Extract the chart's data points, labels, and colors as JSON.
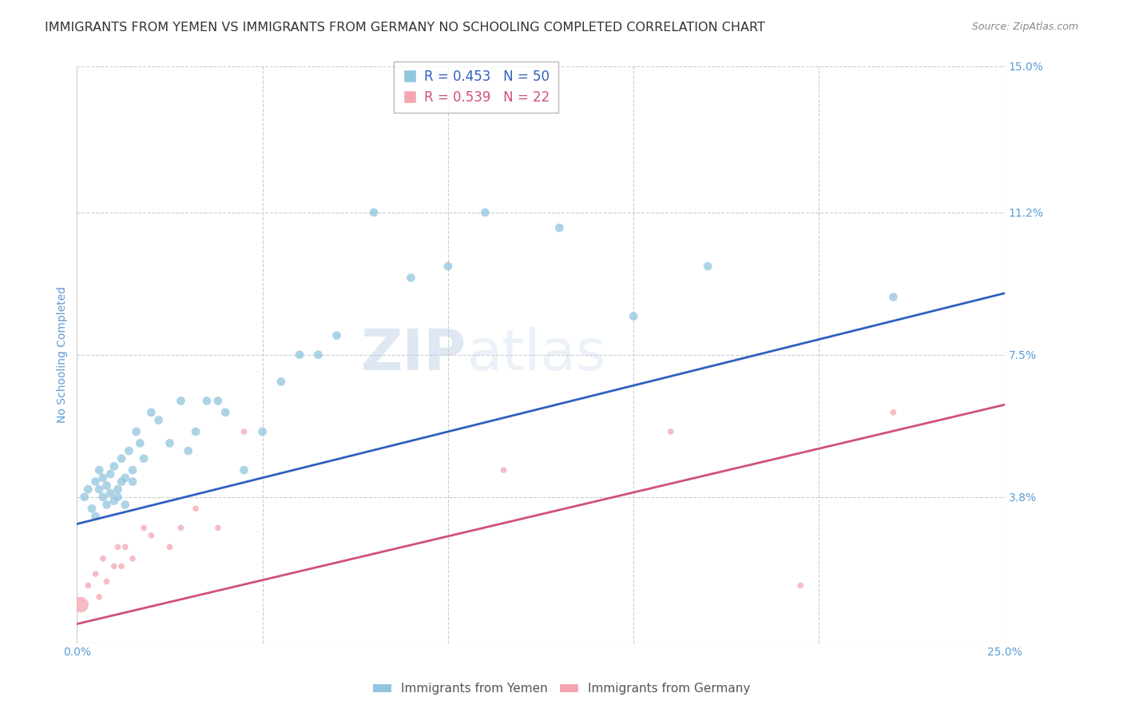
{
  "title": "IMMIGRANTS FROM YEMEN VS IMMIGRANTS FROM GERMANY NO SCHOOLING COMPLETED CORRELATION CHART",
  "source": "Source: ZipAtlas.com",
  "ylabel": "No Schooling Completed",
  "xlim": [
    0.0,
    0.25
  ],
  "ylim": [
    0.0,
    0.15
  ],
  "xticks": [
    0.0,
    0.05,
    0.1,
    0.15,
    0.2,
    0.25
  ],
  "xticklabels": [
    "0.0%",
    "",
    "",
    "",
    "",
    "25.0%"
  ],
  "ytick_labels_right": [
    "3.8%",
    "7.5%",
    "11.2%",
    "15.0%"
  ],
  "ytick_values_right": [
    0.038,
    0.075,
    0.112,
    0.15
  ],
  "grid_color": "#cccccc",
  "background_color": "#ffffff",
  "watermark": "ZIPatlas",
  "yemen_x": [
    0.002,
    0.003,
    0.004,
    0.005,
    0.005,
    0.006,
    0.006,
    0.007,
    0.007,
    0.008,
    0.008,
    0.009,
    0.009,
    0.01,
    0.01,
    0.011,
    0.011,
    0.012,
    0.012,
    0.013,
    0.013,
    0.014,
    0.015,
    0.015,
    0.016,
    0.017,
    0.018,
    0.02,
    0.022,
    0.025,
    0.028,
    0.03,
    0.032,
    0.035,
    0.038,
    0.04,
    0.045,
    0.05,
    0.055,
    0.06,
    0.065,
    0.07,
    0.08,
    0.09,
    0.1,
    0.11,
    0.13,
    0.15,
    0.17,
    0.22
  ],
  "yemen_y": [
    0.038,
    0.04,
    0.035,
    0.042,
    0.033,
    0.04,
    0.045,
    0.038,
    0.043,
    0.036,
    0.041,
    0.039,
    0.044,
    0.037,
    0.046,
    0.04,
    0.038,
    0.042,
    0.048,
    0.036,
    0.043,
    0.05,
    0.045,
    0.042,
    0.055,
    0.052,
    0.048,
    0.06,
    0.058,
    0.052,
    0.063,
    0.05,
    0.055,
    0.063,
    0.063,
    0.06,
    0.045,
    0.055,
    0.068,
    0.075,
    0.075,
    0.08,
    0.112,
    0.095,
    0.098,
    0.112,
    0.108,
    0.085,
    0.098,
    0.09
  ],
  "germany_x": [
    0.001,
    0.003,
    0.005,
    0.006,
    0.007,
    0.008,
    0.01,
    0.011,
    0.012,
    0.013,
    0.015,
    0.018,
    0.02,
    0.025,
    0.028,
    0.032,
    0.038,
    0.045,
    0.115,
    0.16,
    0.195,
    0.22
  ],
  "germany_y": [
    0.01,
    0.015,
    0.018,
    0.012,
    0.022,
    0.016,
    0.02,
    0.025,
    0.02,
    0.025,
    0.022,
    0.03,
    0.028,
    0.025,
    0.03,
    0.035,
    0.03,
    0.055,
    0.045,
    0.055,
    0.015,
    0.06
  ],
  "germany_sizes": [
    200,
    30,
    30,
    30,
    30,
    30,
    30,
    30,
    30,
    30,
    30,
    30,
    30,
    30,
    30,
    30,
    30,
    30,
    30,
    30,
    30,
    30
  ],
  "blue_trend_x": [
    0.0,
    0.25
  ],
  "blue_trend_y": [
    0.031,
    0.091
  ],
  "pink_trend_x": [
    0.0,
    0.25
  ],
  "pink_trend_y": [
    0.005,
    0.062
  ],
  "legend_border_color": "#aaaaaa",
  "title_color": "#333333",
  "axis_label_color": "#5b9bd5",
  "tick_label_color": "#5b9bd5",
  "title_fontsize": 11.5,
  "axis_label_fontsize": 10,
  "tick_fontsize": 10,
  "blue_color": "#92c5de",
  "pink_color": "#f4a6b0",
  "blue_line_color": "#3060c0",
  "pink_line_color": "#d05080"
}
